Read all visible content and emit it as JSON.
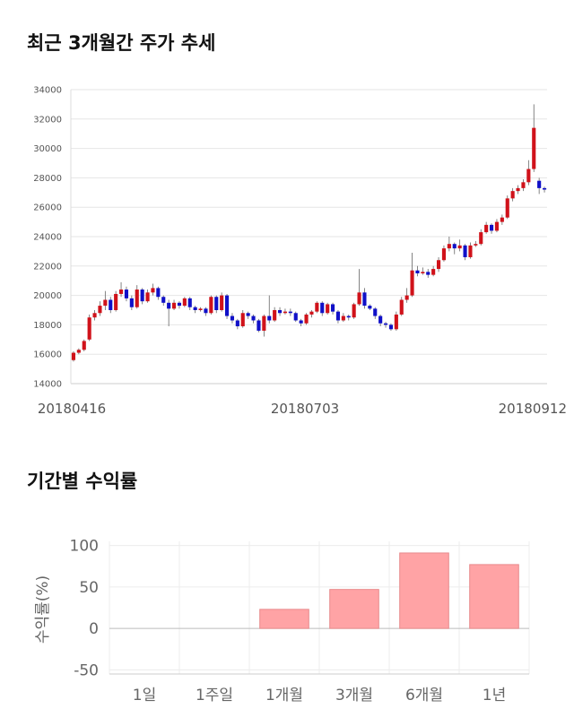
{
  "sections": {
    "price_title": "최근 3개월간 주가 추세",
    "return_title": "기간별 수익률"
  },
  "chart_data": [
    {
      "type": "candlestick",
      "title": "최근 3개월간 주가 추세",
      "ylim": [
        14000,
        34000
      ],
      "yticks": [
        14000,
        16000,
        18000,
        20000,
        22000,
        24000,
        26000,
        28000,
        30000,
        32000,
        34000
      ],
      "x_tick_labels": [
        "20180416",
        "20180703",
        "20180912"
      ],
      "up_color": "#d0121a",
      "down_color": "#1010c8",
      "grid": true,
      "candles": [
        [
          15600,
          16100,
          15500,
          16200
        ],
        [
          16100,
          16300,
          16000,
          16400
        ],
        [
          16300,
          16900,
          16200,
          17000
        ],
        [
          17000,
          18500,
          16900,
          18700
        ],
        [
          18500,
          18800,
          18300,
          19000
        ],
        [
          18800,
          19300,
          18600,
          19600
        ],
        [
          19300,
          19700,
          19000,
          20300
        ],
        [
          19700,
          19000,
          18800,
          19900
        ],
        [
          19000,
          20100,
          18900,
          20300
        ],
        [
          20100,
          20400,
          19900,
          20900
        ],
        [
          20400,
          19800,
          19600,
          20600
        ],
        [
          19800,
          19200,
          19000,
          20000
        ],
        [
          19200,
          20400,
          19100,
          20700
        ],
        [
          20400,
          19600,
          19400,
          20500
        ],
        [
          19600,
          20200,
          19500,
          20400
        ],
        [
          20200,
          20500,
          20000,
          20800
        ],
        [
          20500,
          19900,
          19700,
          20600
        ],
        [
          19900,
          19500,
          19300,
          20000
        ],
        [
          19500,
          19100,
          17900,
          19700
        ],
        [
          19100,
          19500,
          19000,
          19700
        ],
        [
          19500,
          19300,
          19100,
          19600
        ],
        [
          19300,
          19800,
          19200,
          19900
        ],
        [
          19800,
          19200,
          19000,
          19900
        ],
        [
          19200,
          19000,
          18800,
          19300
        ],
        [
          19000,
          19100,
          18900,
          19200
        ],
        [
          19100,
          18800,
          18600,
          19200
        ],
        [
          18800,
          19900,
          18700,
          20000
        ],
        [
          19900,
          19000,
          18800,
          20000
        ],
        [
          19000,
          20000,
          18900,
          20200
        ],
        [
          20000,
          18600,
          18400,
          20100
        ],
        [
          18600,
          18300,
          18100,
          18800
        ],
        [
          18300,
          17900,
          17700,
          18400
        ],
        [
          17900,
          18800,
          17800,
          19000
        ],
        [
          18800,
          18600,
          18400,
          18900
        ],
        [
          18600,
          18300,
          18100,
          18700
        ],
        [
          18300,
          17600,
          17500,
          18400
        ],
        [
          17600,
          18600,
          17200,
          18700
        ],
        [
          18600,
          18300,
          18100,
          20000
        ],
        [
          18300,
          19000,
          18200,
          19200
        ],
        [
          19000,
          18800,
          18600,
          19200
        ],
        [
          18800,
          18900,
          18700,
          19100
        ],
        [
          18900,
          18800,
          18600,
          19100
        ],
        [
          18800,
          18300,
          18200,
          18900
        ],
        [
          18300,
          18100,
          17900,
          18400
        ],
        [
          18100,
          18700,
          18000,
          18800
        ],
        [
          18700,
          18900,
          18500,
          19000
        ],
        [
          18900,
          19500,
          18800,
          19600
        ],
        [
          19500,
          18800,
          18600,
          19600
        ],
        [
          18800,
          19400,
          18700,
          19500
        ],
        [
          19400,
          18900,
          18700,
          19500
        ],
        [
          18900,
          18300,
          18100,
          19000
        ],
        [
          18300,
          18600,
          18200,
          18800
        ],
        [
          18600,
          18500,
          18300,
          18700
        ],
        [
          18500,
          19400,
          18400,
          19500
        ],
        [
          19400,
          20200,
          19300,
          21800
        ],
        [
          20200,
          19300,
          19100,
          20500
        ],
        [
          19300,
          19100,
          19000,
          19400
        ],
        [
          19100,
          18600,
          18400,
          19200
        ],
        [
          18600,
          18100,
          17900,
          18700
        ],
        [
          18100,
          18000,
          17800,
          18200
        ],
        [
          18000,
          17700,
          17600,
          18100
        ],
        [
          17700,
          18700,
          17600,
          18900
        ],
        [
          18700,
          19700,
          18600,
          19900
        ],
        [
          19700,
          20000,
          19500,
          20500
        ],
        [
          20000,
          21700,
          19900,
          22900
        ],
        [
          21700,
          21500,
          21300,
          22000
        ],
        [
          21500,
          21600,
          21400,
          21900
        ],
        [
          21600,
          21400,
          21200,
          21800
        ],
        [
          21400,
          21800,
          21300,
          22000
        ],
        [
          21800,
          22400,
          21600,
          22600
        ],
        [
          22400,
          23200,
          22300,
          23400
        ],
        [
          23200,
          23500,
          23000,
          24000
        ],
        [
          23500,
          23200,
          22800,
          23600
        ],
        [
          23200,
          23400,
          23000,
          23800
        ],
        [
          23400,
          22600,
          22400,
          23500
        ],
        [
          22600,
          23400,
          22500,
          23600
        ],
        [
          23400,
          23500,
          23300,
          23700
        ],
        [
          23500,
          24300,
          23400,
          24500
        ],
        [
          24300,
          24800,
          24200,
          25000
        ],
        [
          24800,
          24400,
          24200,
          24900
        ],
        [
          24400,
          25000,
          24300,
          25200
        ],
        [
          25000,
          25300,
          24800,
          25500
        ],
        [
          25300,
          26600,
          25200,
          26800
        ],
        [
          26600,
          27100,
          26400,
          27300
        ],
        [
          27100,
          27300,
          26900,
          27500
        ],
        [
          27300,
          27700,
          27100,
          27900
        ],
        [
          27700,
          28600,
          27500,
          29200
        ],
        [
          28600,
          31400,
          28400,
          33000
        ],
        [
          27800,
          27300,
          26900,
          28000
        ],
        [
          27300,
          27200,
          27000,
          27400
        ]
      ]
    },
    {
      "type": "bar",
      "categories": [
        "1일",
        "1주일",
        "1개월",
        "3개월",
        "6개월",
        "1년"
      ],
      "values": [
        0,
        0,
        23,
        47,
        91,
        77
      ],
      "ylabel": "수익률(%)",
      "ylim": [
        -55,
        105
      ],
      "yticks": [
        -50,
        0,
        50,
        100
      ],
      "bar_color": "#ffa3a5",
      "bar_stroke": "#e88a8c",
      "grid": true
    }
  ]
}
